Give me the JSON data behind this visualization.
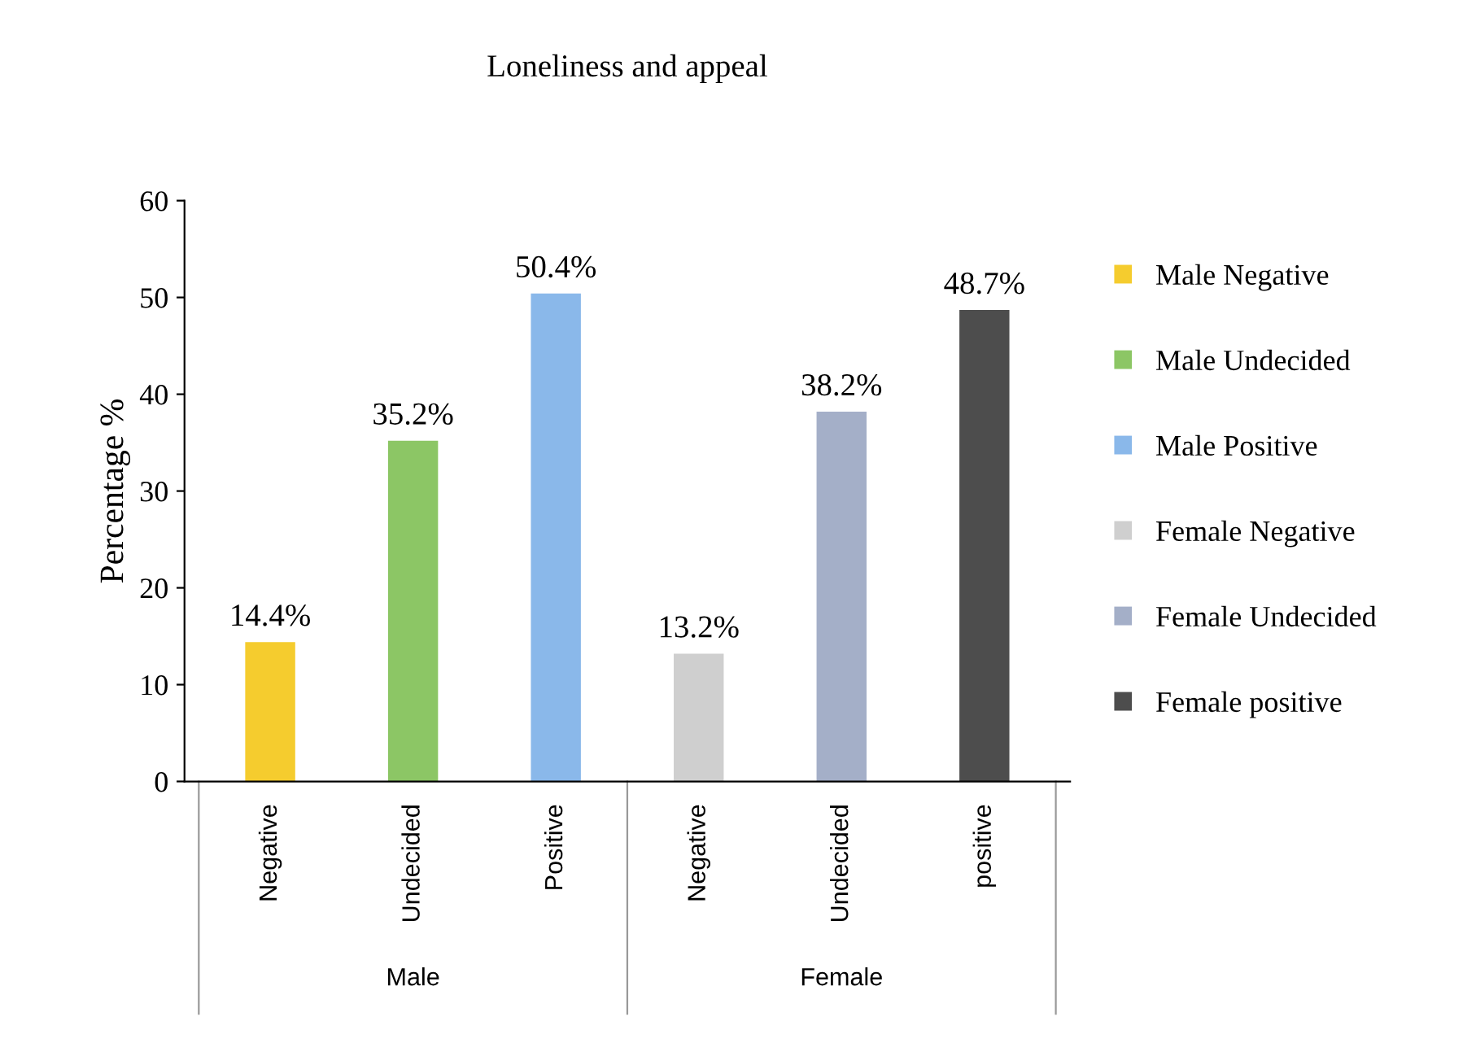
{
  "chart_data": {
    "type": "bar",
    "title": "Loneliness and appeal",
    "ylabel": "Percentage %",
    "categories": [
      "Negative",
      "Undecided",
      "Positive",
      "Negative",
      "Undecided",
      "positive"
    ],
    "series": [
      {
        "name": "Male Negative",
        "color": "#f5cc2e",
        "values": [
          14.4,
          null,
          null,
          null,
          null,
          null
        ],
        "value_labels": [
          "14.4%",
          null,
          null,
          null,
          null,
          null
        ]
      },
      {
        "name": "Male Undecided",
        "color": "#8cc665",
        "values": [
          null,
          35.2,
          null,
          null,
          null,
          null
        ],
        "value_labels": [
          null,
          "35.2%",
          null,
          null,
          null,
          null
        ]
      },
      {
        "name": "Male Positive",
        "color": "#8ab8ea",
        "values": [
          null,
          null,
          50.4,
          null,
          null,
          null
        ],
        "value_labels": [
          null,
          null,
          "50.4%",
          null,
          null,
          null
        ]
      },
      {
        "name": "Female Negative",
        "color": "#cfcfcf",
        "values": [
          null,
          null,
          null,
          13.2,
          null,
          null
        ],
        "value_labels": [
          null,
          null,
          null,
          "13.2%",
          null,
          null
        ]
      },
      {
        "name": "Female Undecided",
        "color": "#a4afc8",
        "values": [
          null,
          null,
          null,
          null,
          38.2,
          null
        ],
        "value_labels": [
          null,
          null,
          null,
          null,
          "38.2%",
          null
        ]
      },
      {
        "name": "Female positive",
        "color": "#4d4d4d",
        "values": [
          null,
          null,
          null,
          null,
          null,
          48.7
        ],
        "value_labels": [
          null,
          null,
          null,
          null,
          null,
          "48.7%"
        ]
      }
    ],
    "annotations": [
      "Male",
      "Female"
    ],
    "ylim": [
      0,
      60
    ],
    "yticks": [
      0,
      10,
      20,
      30,
      40,
      50,
      60
    ],
    "grid": false,
    "legend": "right"
  }
}
